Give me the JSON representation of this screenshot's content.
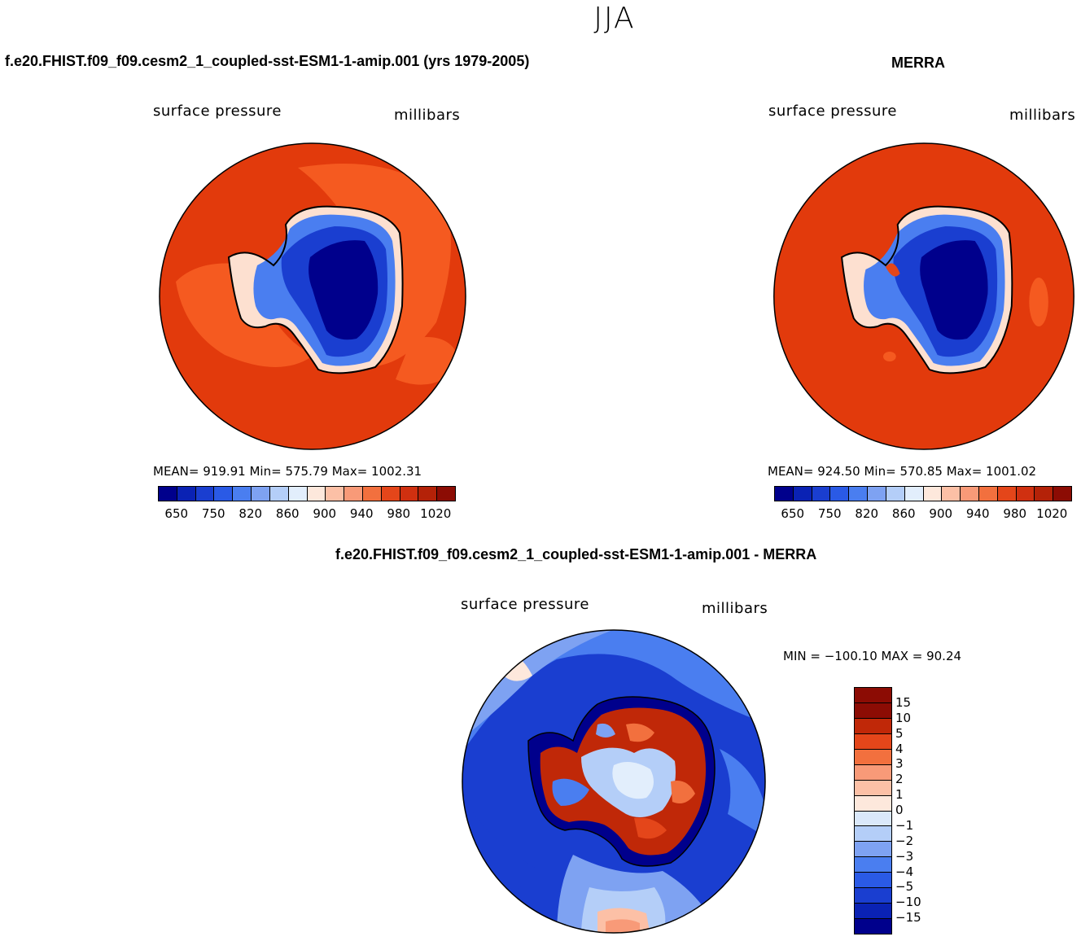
{
  "main_title": "JJA",
  "panel_left": {
    "title": "f.e20.FHIST.f09_f09.cesm2_1_coupled-sst-ESM1-1-amip.001 (yrs 1979-2005)",
    "variable": "surface pressure",
    "units": "millibars",
    "stats": "MEAN= 919.91   Min= 575.79   Max= 1002.31"
  },
  "panel_right": {
    "title": "MERRA",
    "variable": "surface pressure",
    "units": "millibars",
    "stats": "MEAN= 924.50   Min= 570.85   Max= 1001.02"
  },
  "panel_diff": {
    "title": "f.e20.FHIST.f09_f09.cesm2_1_coupled-sst-ESM1-1-amip.001 - MERRA",
    "variable": "surface pressure",
    "units": "millibars",
    "minmax": "MIN = −100.10 MAX =  90.24"
  },
  "abs_colorbar": {
    "colors": [
      "#00008c",
      "#0a22b4",
      "#1a3ed0",
      "#2a5ae6",
      "#4a7ef0",
      "#7ea2f2",
      "#b4cef8",
      "#e2eefc",
      "#fde8dc",
      "#fcc0a6",
      "#f89a78",
      "#f2703e",
      "#e4461a",
      "#d03010",
      "#b42208",
      "#8c0c04"
    ],
    "tick_labels": [
      "650",
      "750",
      "820",
      "860",
      "900",
      "940",
      "980",
      "1020"
    ]
  },
  "diff_colorbar": {
    "colors": [
      "#8c0c04",
      "#c02808",
      "#e4461a",
      "#f2703e",
      "#f89a78",
      "#fcc0a6",
      "#fde8dc",
      "#dae8fa",
      "#b4cef8",
      "#7ea2f2",
      "#4a7ef0",
      "#2a5ae6",
      "#1a3ed0",
      "#0a22b4",
      "#00008c"
    ],
    "tick_labels": [
      "15",
      "10",
      "5",
      "4",
      "3",
      "2",
      "1",
      "0",
      "−1",
      "−2",
      "−3",
      "−4",
      "−5",
      "−10",
      "−15"
    ]
  }
}
